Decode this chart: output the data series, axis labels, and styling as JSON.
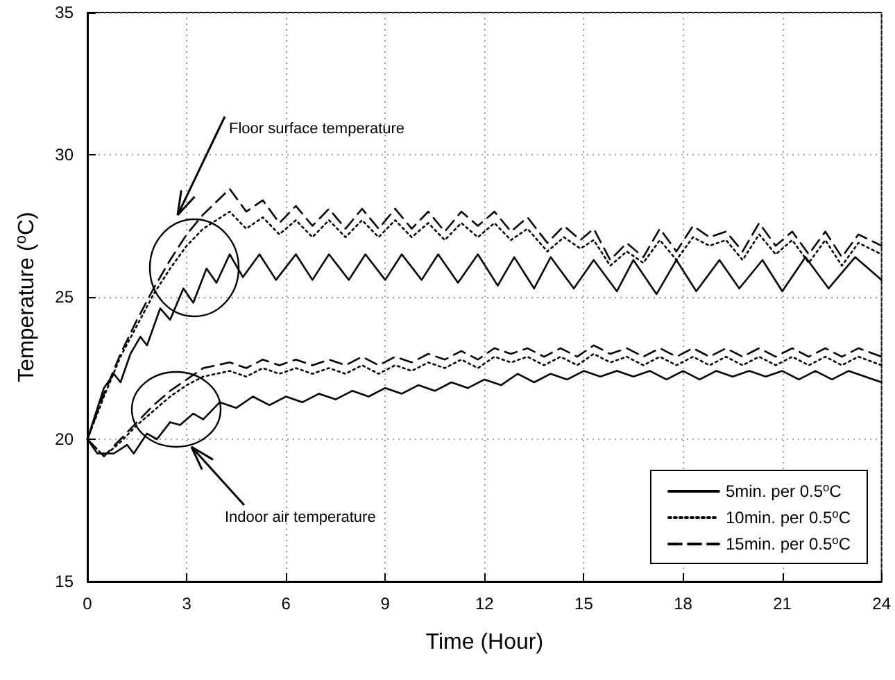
{
  "chart_data": {
    "type": "line",
    "xlabel": "Time (Hour)",
    "ylabel": "Temperature ($^{o}$C)",
    "xlim": [
      0,
      24
    ],
    "xticks": [
      0,
      3,
      6,
      9,
      12,
      15,
      18,
      21,
      24
    ],
    "ylim": [
      15,
      35
    ],
    "yticks": [
      15,
      20,
      25,
      30,
      35
    ],
    "grid": true,
    "legend": "bottom right",
    "marker": "none",
    "annotations": [
      "Floor surface temperature",
      "Indoor air temperature"
    ],
    "series": [
      {
        "name": "5min. per 0.5$^{o}$C",
        "color": "#000000",
        "line_style": "solid",
        "x": [
          0,
          0.5,
          0.8,
          1.0,
          1.3,
          1.6,
          1.8,
          2.2,
          2.5,
          2.9,
          3.2,
          3.6,
          3.9,
          4.3,
          4.7,
          5.2,
          5.7,
          6.3,
          6.8,
          7.3,
          7.9,
          8.4,
          9.0,
          9.5,
          10.1,
          10.6,
          11.2,
          11.8,
          12.4,
          12.9,
          13.5,
          14.0,
          14.7,
          15.3,
          16.0,
          16.5,
          17.2,
          17.8,
          18.4,
          19.1,
          19.7,
          20.4,
          21.0,
          21.7,
          22.4,
          23.2,
          24.0
        ],
        "values": [
          20.0,
          21.8,
          22.3,
          22.0,
          23.0,
          23.6,
          23.3,
          24.6,
          24.2,
          25.3,
          24.8,
          26.0,
          25.5,
          26.5,
          25.7,
          26.5,
          25.6,
          26.5,
          25.6,
          26.5,
          25.6,
          26.5,
          25.6,
          26.5,
          25.6,
          26.5,
          25.5,
          26.5,
          25.4,
          26.4,
          25.3,
          26.4,
          25.3,
          26.3,
          25.2,
          26.3,
          25.1,
          26.3,
          25.2,
          26.3,
          25.3,
          26.3,
          25.2,
          26.4,
          25.3,
          26.4,
          25.6
        ]
      },
      {
        "name": "10min. per 0.5$^{o}$C",
        "color": "#000000",
        "line_style": "dotted",
        "x": [
          0,
          0.5,
          1,
          1.5,
          2,
          2.5,
          3,
          3.5,
          4.3,
          4.8,
          5.3,
          5.8,
          6.3,
          6.8,
          7.3,
          7.8,
          8.3,
          8.8,
          9.3,
          9.8,
          10.3,
          10.8,
          11.3,
          11.8,
          12.3,
          12.8,
          13.3,
          13.9,
          14.4,
          14.9,
          15.3,
          15.8,
          16.3,
          16.8,
          17.3,
          17.8,
          18.3,
          18.8,
          19.3,
          19.8,
          20.3,
          20.8,
          21.3,
          21.8,
          22.3,
          22.8,
          23.3,
          24
        ],
        "values": [
          20.0,
          21.5,
          22.9,
          24.0,
          25.1,
          26.0,
          26.8,
          27.4,
          28.0,
          27.4,
          27.8,
          27.2,
          27.7,
          27.1,
          27.7,
          27.1,
          27.7,
          27.1,
          27.7,
          27.1,
          27.6,
          27.0,
          27.6,
          27.1,
          27.6,
          27.0,
          27.4,
          26.6,
          27.1,
          26.7,
          27.0,
          26.1,
          26.6,
          26.2,
          27.0,
          26.3,
          27.1,
          26.8,
          27.0,
          26.3,
          27.2,
          26.5,
          27.0,
          26.2,
          27.0,
          26.1,
          26.9,
          26.5
        ]
      },
      {
        "name": "15min. per 0.5$^{o}$C",
        "color": "#000000",
        "line_style": "dashed",
        "x": [
          0,
          0.5,
          1,
          1.5,
          2,
          2.5,
          3,
          3.5,
          4.3,
          4.8,
          5.3,
          5.8,
          6.3,
          6.8,
          7.3,
          7.8,
          8.3,
          8.8,
          9.3,
          9.8,
          10.3,
          10.8,
          11.3,
          11.8,
          12.3,
          12.8,
          13.3,
          13.9,
          14.4,
          14.9,
          15.3,
          15.8,
          16.3,
          16.8,
          17.3,
          17.8,
          18.3,
          18.8,
          19.3,
          19.8,
          20.3,
          20.8,
          21.3,
          21.8,
          22.3,
          22.8,
          23.3,
          24
        ],
        "values": [
          20.0,
          21.6,
          23.0,
          24.2,
          25.3,
          26.3,
          27.2,
          27.9,
          28.8,
          28.0,
          28.4,
          27.6,
          28.2,
          27.5,
          28.1,
          27.4,
          28.1,
          27.4,
          28.1,
          27.4,
          28.0,
          27.3,
          28.0,
          27.5,
          28.0,
          27.3,
          27.8,
          26.9,
          27.5,
          27.0,
          27.4,
          26.3,
          26.9,
          26.4,
          27.4,
          26.6,
          27.5,
          27.1,
          27.3,
          26.6,
          27.6,
          26.8,
          27.3,
          26.5,
          27.3,
          26.4,
          27.2,
          26.8
        ]
      },
      {
        "color": "#000000",
        "line_style": "solid",
        "x": [
          0,
          0.3,
          0.8,
          1.2,
          1.4,
          1.8,
          2.1,
          2.5,
          2.8,
          3.2,
          3.5,
          4.0,
          4.5,
          5.0,
          5.5,
          6.0,
          6.5,
          7,
          7.5,
          8,
          8.5,
          9,
          9.5,
          10,
          10.5,
          11,
          11.5,
          12,
          12.5,
          13,
          13.5,
          14,
          14.5,
          15,
          15.5,
          16,
          16.5,
          17,
          17.5,
          18,
          18.5,
          19,
          19.5,
          20,
          20.5,
          21,
          21.5,
          22,
          22.5,
          23,
          23.5,
          24
        ],
        "values": [
          20.0,
          19.5,
          19.5,
          19.8,
          19.5,
          20.2,
          20.0,
          20.6,
          20.5,
          20.9,
          20.7,
          21.3,
          21.1,
          21.5,
          21.2,
          21.5,
          21.3,
          21.6,
          21.4,
          21.7,
          21.5,
          21.8,
          21.6,
          21.9,
          21.7,
          22.0,
          21.8,
          22.1,
          21.9,
          22.3,
          22.0,
          22.3,
          22.1,
          22.4,
          22.2,
          22.4,
          22.2,
          22.4,
          22.1,
          22.4,
          22.1,
          22.4,
          22.2,
          22.4,
          22.2,
          22.4,
          22.1,
          22.4,
          22.1,
          22.4,
          22.2,
          22.0
        ]
      },
      {
        "color": "#000000",
        "line_style": "dotted",
        "x": [
          0,
          0.5,
          1,
          1.5,
          2,
          2.5,
          3,
          3.5,
          4.3,
          4.8,
          5.3,
          5.8,
          6.3,
          6.8,
          7.3,
          7.8,
          8.3,
          8.8,
          9.3,
          9.8,
          10.3,
          10.8,
          11.3,
          11.8,
          12.3,
          12.8,
          13.3,
          13.8,
          14.3,
          14.8,
          15.3,
          15.8,
          16.3,
          16.8,
          17.3,
          17.8,
          18.3,
          18.8,
          19.3,
          19.8,
          20.3,
          20.8,
          21.3,
          21.8,
          22.3,
          22.8,
          23.3,
          24
        ],
        "values": [
          20.0,
          19.4,
          19.9,
          20.5,
          21.0,
          21.5,
          21.9,
          22.2,
          22.4,
          22.2,
          22.5,
          22.3,
          22.5,
          22.3,
          22.5,
          22.3,
          22.6,
          22.3,
          22.6,
          22.4,
          22.7,
          22.5,
          22.8,
          22.5,
          22.9,
          22.7,
          22.9,
          22.6,
          22.9,
          22.6,
          23.0,
          22.7,
          22.9,
          22.6,
          22.9,
          22.6,
          22.9,
          22.6,
          22.9,
          22.6,
          22.9,
          22.6,
          22.9,
          22.6,
          22.9,
          22.6,
          22.9,
          22.6
        ]
      },
      {
        "color": "#000000",
        "line_style": "dashed",
        "x": [
          0,
          0.5,
          1,
          1.5,
          2,
          2.5,
          3,
          3.5,
          4.3,
          4.8,
          5.3,
          5.8,
          6.3,
          6.8,
          7.3,
          7.8,
          8.3,
          8.8,
          9.3,
          9.8,
          10.3,
          10.8,
          11.3,
          11.8,
          12.3,
          12.8,
          13.3,
          13.8,
          14.3,
          14.8,
          15.3,
          15.8,
          16.3,
          16.8,
          17.3,
          17.8,
          18.3,
          18.8,
          19.3,
          19.8,
          20.3,
          20.8,
          21.3,
          21.8,
          22.3,
          22.8,
          23.3,
          24
        ],
        "values": [
          20.0,
          19.4,
          20.0,
          20.6,
          21.2,
          21.7,
          22.1,
          22.5,
          22.7,
          22.5,
          22.8,
          22.6,
          22.8,
          22.6,
          22.8,
          22.6,
          22.9,
          22.6,
          22.9,
          22.7,
          23.0,
          22.8,
          23.1,
          22.8,
          23.2,
          23.0,
          23.2,
          22.9,
          23.2,
          22.9,
          23.3,
          23.0,
          23.2,
          22.9,
          23.2,
          22.9,
          23.2,
          22.9,
          23.2,
          22.9,
          23.2,
          22.9,
          23.2,
          22.9,
          23.2,
          22.9,
          23.2,
          22.9
        ]
      }
    ]
  }
}
